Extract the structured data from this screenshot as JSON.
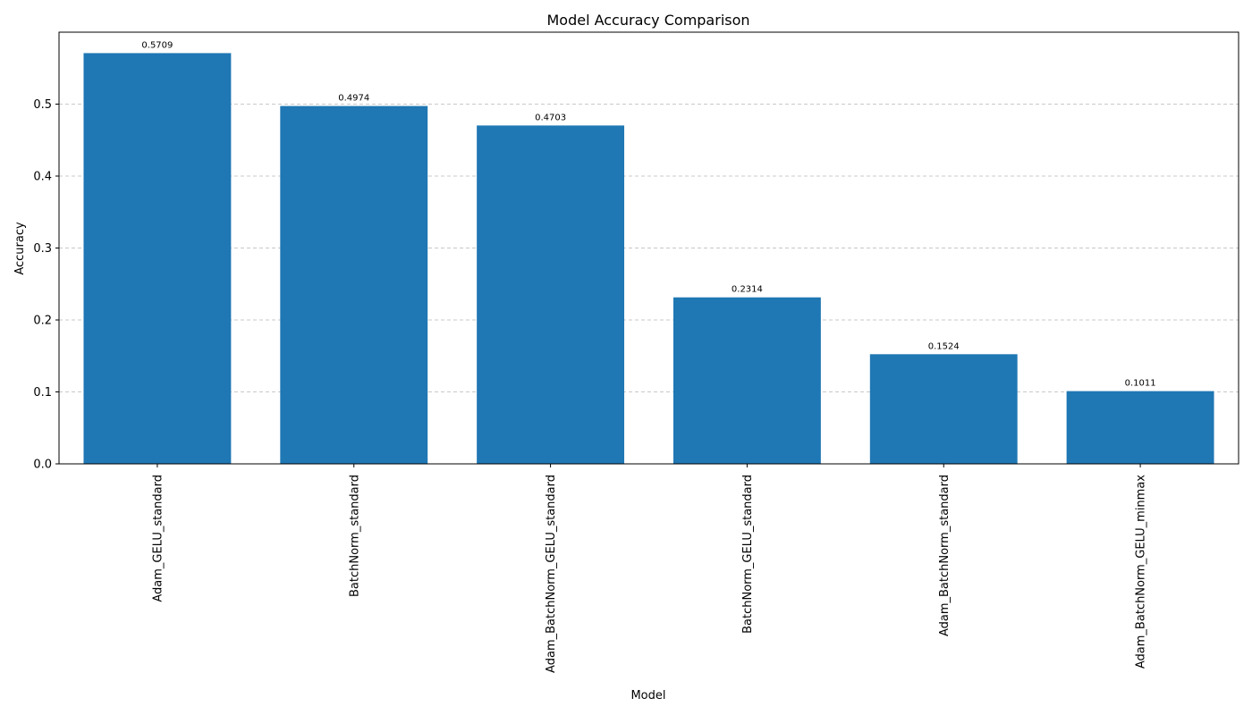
{
  "chart_data": {
    "type": "bar",
    "title": "Model Accuracy Comparison",
    "xlabel": "Model",
    "ylabel": "Accuracy",
    "categories": [
      "Adam_GELU_standard",
      "BatchNorm_standard",
      "Adam_BatchNorm_GELU_standard",
      "BatchNorm_GELU_standard",
      "Adam_BatchNorm_standard",
      "Adam_BatchNorm_GELU_minmax"
    ],
    "values": [
      0.5709,
      0.4974,
      0.4703,
      0.2314,
      0.1524,
      0.1011
    ],
    "value_labels": [
      "0.5709",
      "0.4974",
      "0.4703",
      "0.2314",
      "0.1524",
      "0.1011"
    ],
    "ylim": [
      0,
      0.6
    ],
    "yticks": [
      0.0,
      0.1,
      0.2,
      0.3,
      0.4,
      0.5
    ],
    "ytick_labels": [
      "0.0",
      "0.1",
      "0.2",
      "0.3",
      "0.4",
      "0.5"
    ],
    "grid": true,
    "bar_color": "#1f77b4",
    "grid_color": "#c8c8c8"
  }
}
